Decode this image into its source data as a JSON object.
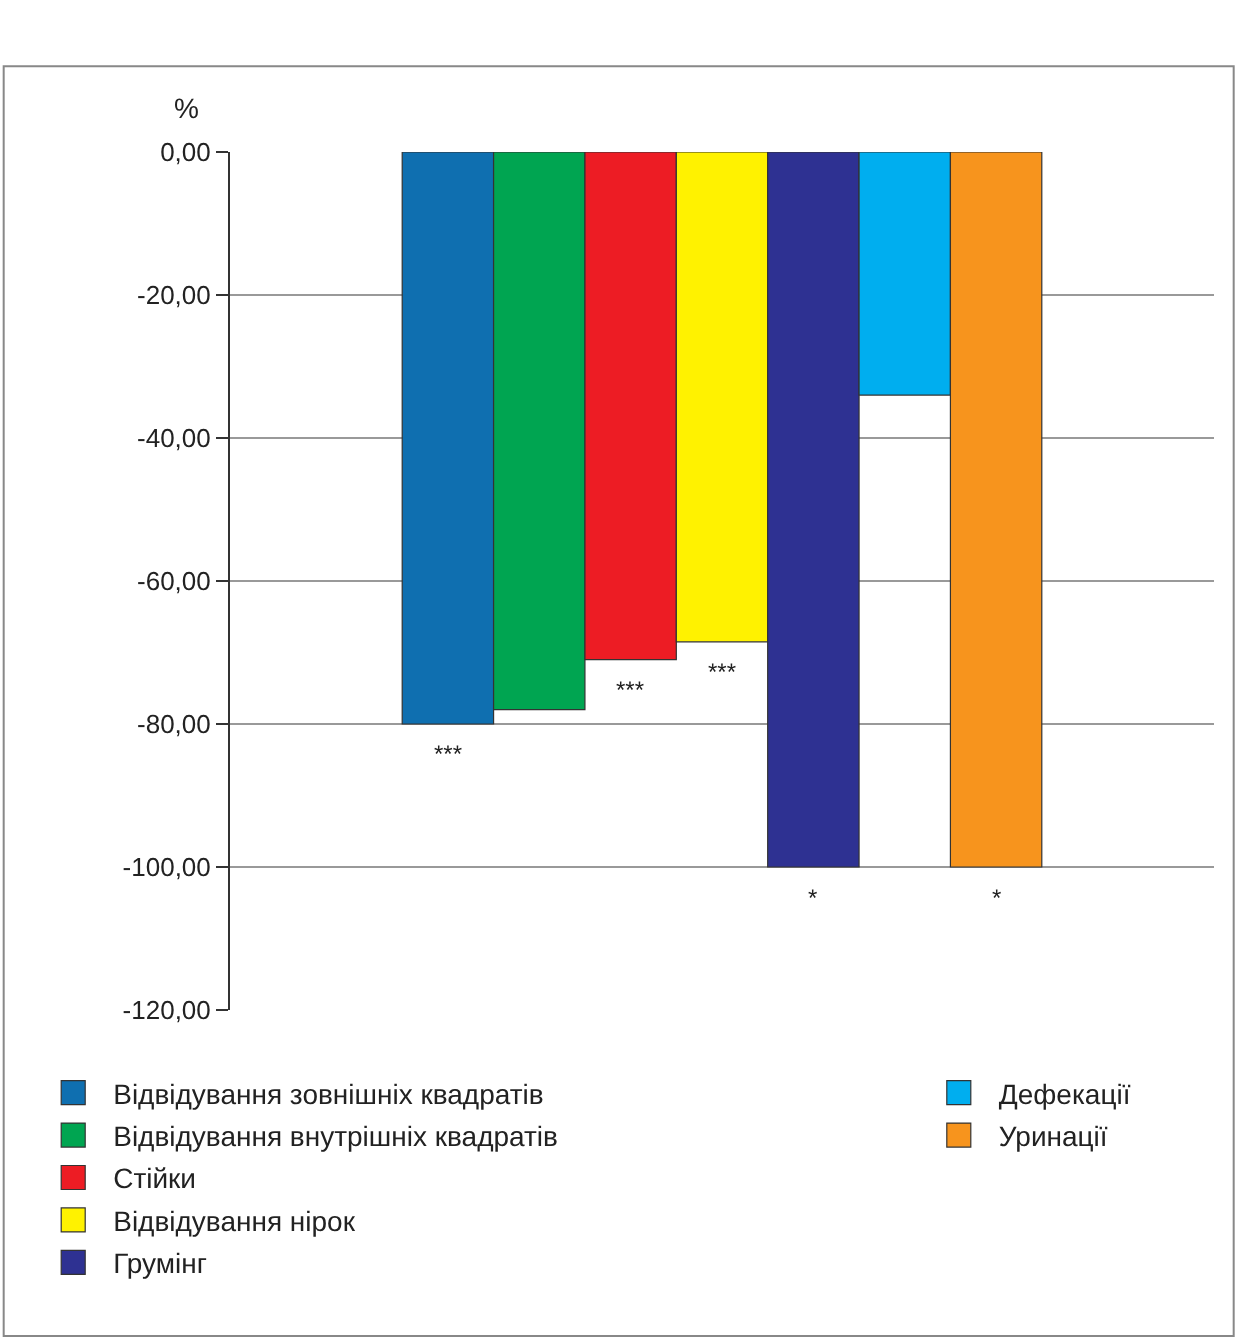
{
  "chart_data": {
    "type": "bar",
    "ylabel": "%",
    "categories": [
      null
    ],
    "series": [
      {
        "name": "Відвідування зовнішніх квадратів",
        "color": "#0f6fb0",
        "values": [
          -80
        ]
      },
      {
        "name": "Відвідування внутрішніх квадратів",
        "color": "#00a551",
        "values": [
          -78
        ]
      },
      {
        "name": "Стійки",
        "color": "#ed1c24",
        "values": [
          -71
        ]
      },
      {
        "name": "Відвідування нірок",
        "color": "#fff200",
        "values": [
          -68.5
        ]
      },
      {
        "name": "Грумінг",
        "color": "#2e3192",
        "values": [
          -100
        ]
      },
      {
        "name": "Дефекації",
        "color": "#00aeef",
        "values": [
          -34
        ]
      },
      {
        "name": "Уринації",
        "color": "#f7941d",
        "values": [
          -100
        ]
      }
    ],
    "annotations": [
      {
        "text": "***",
        "y": -80
      },
      {
        "text": "***",
        "y": -71
      },
      {
        "text": "***",
        "y": -68.5
      },
      {
        "text": "*",
        "y": -100
      },
      {
        "text": "*",
        "y": -100
      }
    ],
    "ylim": [
      -120,
      0
    ],
    "yticks": [
      {
        "value": 0,
        "label": "0,00"
      },
      {
        "value": -20,
        "label": "-20,00"
      },
      {
        "value": -40,
        "label": "-40,00"
      },
      {
        "value": -60,
        "label": "-60,00"
      },
      {
        "value": -80,
        "label": "-80,00"
      },
      {
        "value": -100,
        "label": "-100,00"
      },
      {
        "value": -120,
        "label": "-120,00"
      }
    ],
    "grid": "y",
    "legend": "bottom"
  }
}
